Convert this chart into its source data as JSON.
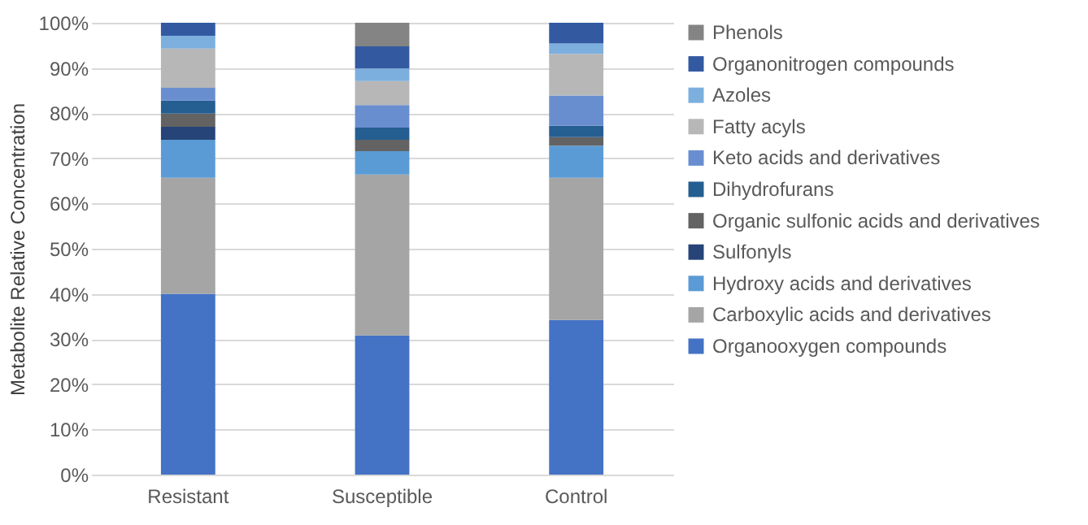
{
  "chart_data": {
    "type": "bar",
    "stacked": true,
    "ylabel": "Metabolite Relative Concentration",
    "categories": [
      "Resistant",
      "Susceptible",
      "Control"
    ],
    "series": [
      {
        "name": "Organooxygen compounds",
        "color": "#4472c4",
        "values": [
          40,
          30.8,
          34.2
        ]
      },
      {
        "name": "Carboxylic acids and derivatives",
        "color": "#a5a5a5",
        "values": [
          25.7,
          35.6,
          31.5
        ]
      },
      {
        "name": "Hydroxy acids and derivatives",
        "color": "#5b9bd5",
        "values": [
          8.4,
          5.2,
          7.1
        ]
      },
      {
        "name": "Sulfonyls",
        "color": "#264478",
        "values": [
          2.9,
          0,
          0
        ]
      },
      {
        "name": "Organic sulfonic acids and derivatives",
        "color": "#636363",
        "values": [
          2.9,
          2.5,
          1.9
        ]
      },
      {
        "name": "Dihydrofurans",
        "color": "#255e91",
        "values": [
          2.9,
          2.7,
          2.5
        ]
      },
      {
        "name": "Keto acids and derivatives",
        "color": "#698ed0",
        "values": [
          2.8,
          5.0,
          6.7
        ]
      },
      {
        "name": "Fatty acyls",
        "color": "#b7b7b7",
        "values": [
          8.7,
          5.3,
          9.2
        ]
      },
      {
        "name": "Azoles",
        "color": "#7cafdd",
        "values": [
          2.8,
          2.8,
          2.3
        ]
      },
      {
        "name": "Organonitrogen compounds",
        "color": "#335aa1",
        "values": [
          2.9,
          4.9,
          4.6
        ]
      },
      {
        "name": "Phenols",
        "color": "#848484",
        "values": [
          0,
          5.2,
          0
        ]
      }
    ],
    "ylim": [
      0,
      100
    ],
    "yticks": [
      {
        "value": 0,
        "label": "0%"
      },
      {
        "value": 10,
        "label": "10%"
      },
      {
        "value": 20,
        "label": "20%"
      },
      {
        "value": 30,
        "label": "30%"
      },
      {
        "value": 40,
        "label": "40%"
      },
      {
        "value": 50,
        "label": "50%"
      },
      {
        "value": 60,
        "label": "60%"
      },
      {
        "value": 70,
        "label": "70%"
      },
      {
        "value": 80,
        "label": "80%"
      },
      {
        "value": 90,
        "label": "90%"
      },
      {
        "value": 100,
        "label": "100%"
      }
    ],
    "grid": "y",
    "legend": "right"
  }
}
